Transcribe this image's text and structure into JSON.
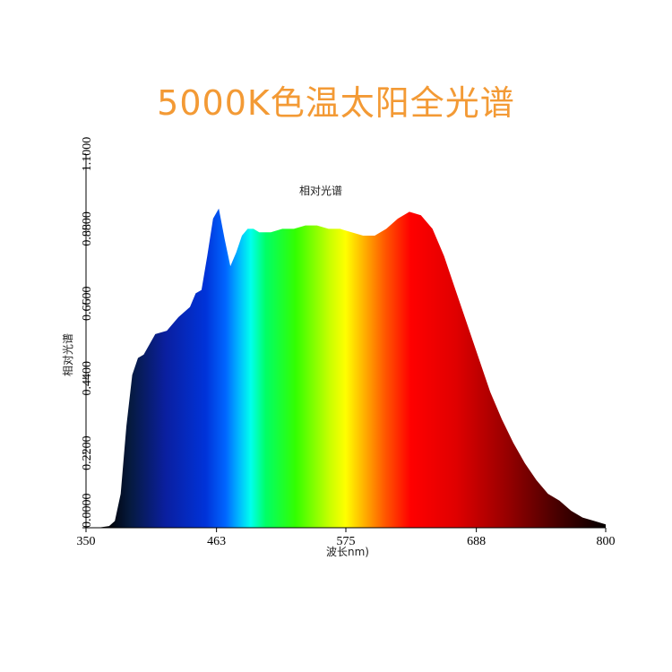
{
  "headline": "5000K色温太阳全光谱",
  "chart_data": {
    "type": "area",
    "title": "相对光谱",
    "xlabel": "波长nm)",
    "ylabel": "相对光谱",
    "xlim": [
      350,
      800
    ],
    "ylim": [
      0,
      1.1
    ],
    "x_ticks": [
      350,
      463,
      575,
      688,
      800
    ],
    "x_tick_labels": [
      "350",
      "463",
      "575",
      "688",
      "800"
    ],
    "y_ticks": [
      0,
      0.22,
      0.44,
      0.66,
      0.88,
      1.1
    ],
    "y_tick_labels": [
      "0.0000",
      "0.2200",
      "0.4400",
      "0.6600",
      "0.8800",
      "1.1000"
    ],
    "grid": false,
    "fill": "visible-spectrum color gradient (violet to deep red)",
    "x": [
      350,
      360,
      370,
      375,
      380,
      385,
      390,
      395,
      400,
      410,
      420,
      430,
      440,
      445,
      450,
      455,
      460,
      465,
      470,
      475,
      480,
      485,
      490,
      495,
      500,
      510,
      520,
      530,
      540,
      550,
      560,
      570,
      580,
      590,
      600,
      610,
      620,
      630,
      640,
      650,
      660,
      670,
      680,
      690,
      700,
      710,
      720,
      730,
      740,
      750,
      760,
      770,
      780,
      790,
      800
    ],
    "values": [
      0.0,
      0.0,
      0.005,
      0.02,
      0.1,
      0.3,
      0.45,
      0.5,
      0.51,
      0.57,
      0.58,
      0.62,
      0.65,
      0.69,
      0.7,
      0.8,
      0.91,
      0.94,
      0.85,
      0.77,
      0.81,
      0.86,
      0.88,
      0.88,
      0.87,
      0.87,
      0.88,
      0.88,
      0.89,
      0.89,
      0.88,
      0.88,
      0.87,
      0.86,
      0.86,
      0.88,
      0.91,
      0.93,
      0.92,
      0.88,
      0.8,
      0.7,
      0.6,
      0.5,
      0.4,
      0.32,
      0.25,
      0.19,
      0.14,
      0.1,
      0.08,
      0.05,
      0.03,
      0.02,
      0.01
    ]
  }
}
